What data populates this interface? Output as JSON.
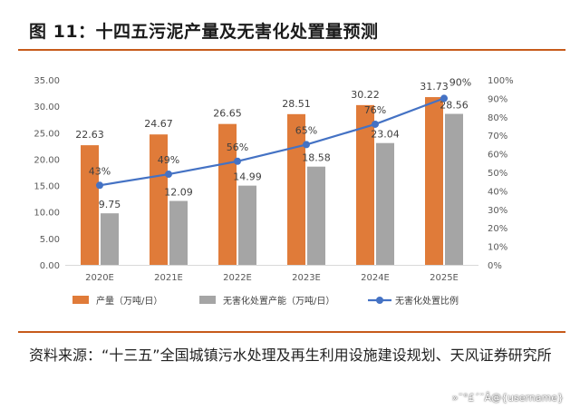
{
  "figure_title": "图 11：十四五污泥产量及无害化处置量预测",
  "source_note": "资料来源：“十三五”全国城镇污水处理及再生利用设施建设规划、天风证券研究所",
  "watermark": "»¯°£´¨Â­@{username}",
  "chart_data": {
    "type": "bar",
    "categories": [
      "2020E",
      "2021E",
      "2022E",
      "2023E",
      "2024E",
      "2025E"
    ],
    "series": [
      {
        "name": "产量（万吨/日）",
        "kind": "bar",
        "axis": "left",
        "color": "#e07b39",
        "values": [
          22.63,
          24.67,
          26.65,
          28.51,
          30.22,
          31.73
        ],
        "labels": [
          "22.63",
          "24.67",
          "26.65",
          "28.51",
          "30.22",
          "31.73"
        ]
      },
      {
        "name": "无害化处置产能（万吨/日）",
        "kind": "bar",
        "axis": "left",
        "color": "#a5a5a5",
        "values": [
          9.75,
          12.09,
          14.99,
          18.58,
          23.04,
          28.56
        ],
        "labels": [
          "9.75",
          "12.09",
          "14.99",
          "18.58",
          "23.04",
          "28.56"
        ]
      },
      {
        "name": "无害化处置比例",
        "kind": "line",
        "axis": "right",
        "color": "#4472c4",
        "values": [
          0.43,
          0.49,
          0.56,
          0.65,
          0.76,
          0.9
        ],
        "labels": [
          "43%",
          "49%",
          "56%",
          "65%",
          "76%",
          "90%"
        ]
      }
    ],
    "y_left": {
      "lim": [
        0,
        35
      ],
      "ticks": [
        "0.00",
        "5.00",
        "10.00",
        "15.00",
        "20.00",
        "25.00",
        "30.00",
        "35.00"
      ]
    },
    "y_right": {
      "lim": [
        0,
        1
      ],
      "ticks": [
        "0%",
        "10%",
        "20%",
        "30%",
        "40%",
        "50%",
        "60%",
        "70%",
        "80%",
        "90%",
        "100%"
      ]
    },
    "grid": false,
    "legend": "bottom"
  }
}
